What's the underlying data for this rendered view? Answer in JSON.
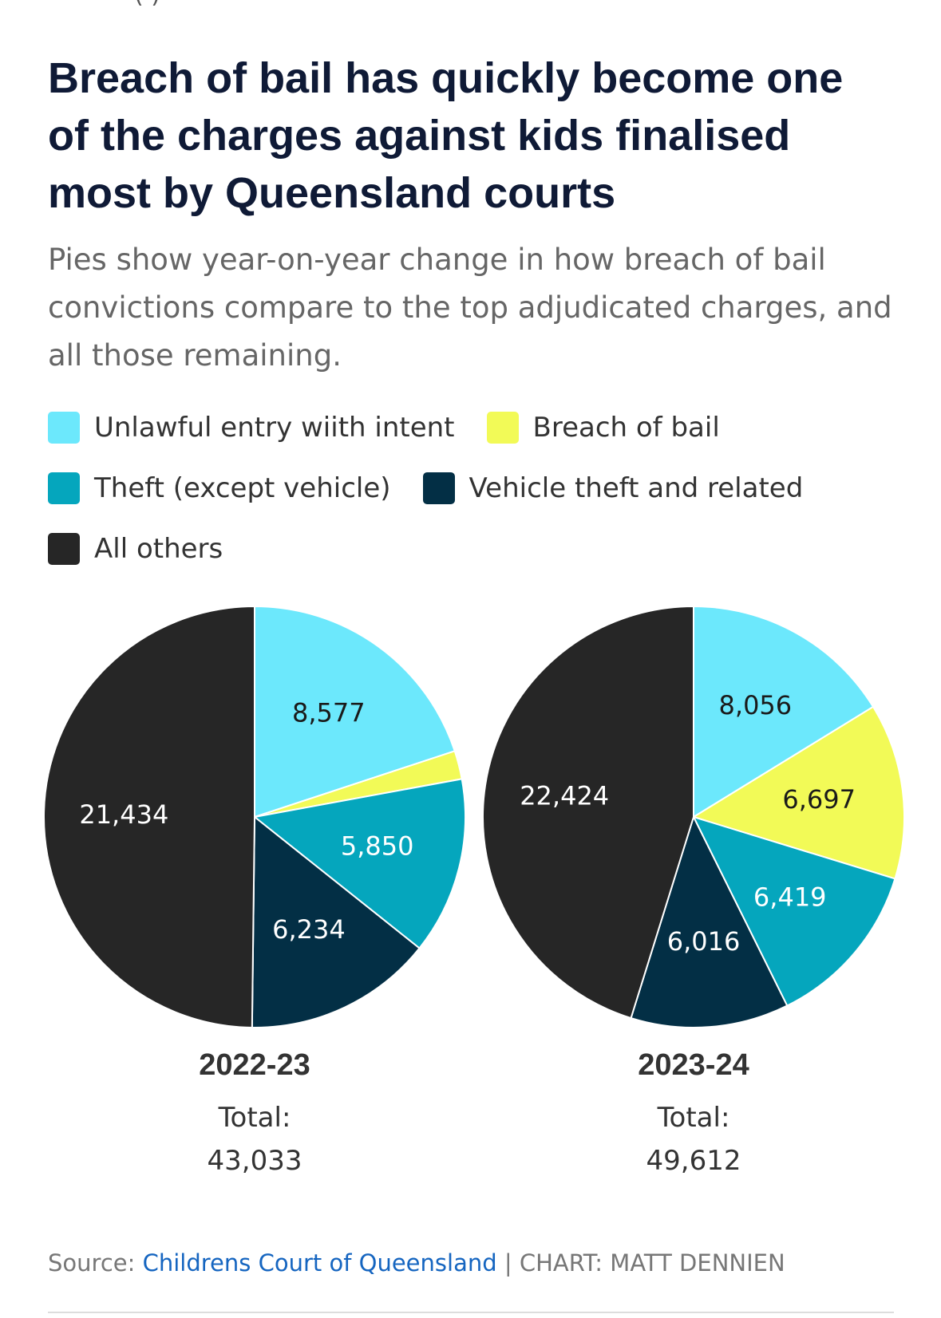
{
  "header": {
    "title": "Breach of bail has quickly become one of the charges against kids finalised most by Queensland courts",
    "subtitle": "Pies show year-on-year change in how breach of bail convictions compare to the top adjudicated charges, and all those remaining."
  },
  "legend": {
    "items": [
      {
        "label": "Unlawful entry wiith intent",
        "color": "#6ce8fc"
      },
      {
        "label": "Breach of bail",
        "color": "#f2fa57"
      },
      {
        "label": "Theft (except vehicle)",
        "color": "#05a6bd"
      },
      {
        "label": "Vehicle theft and related",
        "color": "#032f45"
      },
      {
        "label": "All others",
        "color": "#262626"
      }
    ]
  },
  "chart_data": [
    {
      "type": "pie",
      "title": "2022-23",
      "total_label": "Total:",
      "total": "43,033",
      "slices": [
        {
          "name": "Unlawful entry wiith intent",
          "value": 8577,
          "label": "8,577",
          "color": "#6ce8fc",
          "label_color": "#1a1a1a"
        },
        {
          "name": "Breach of bail",
          "value": 938,
          "label": "",
          "color": "#f2fa57",
          "label_color": "#1a1a1a"
        },
        {
          "name": "Theft (except vehicle)",
          "value": 5850,
          "label": "5,850",
          "color": "#05a6bd",
          "label_color": "#ffffff"
        },
        {
          "name": "Vehicle theft and related",
          "value": 6234,
          "label": "6,234",
          "color": "#032f45",
          "label_color": "#ffffff"
        },
        {
          "name": "All others",
          "value": 21434,
          "label": "21,434",
          "color": "#262626",
          "label_color": "#ffffff"
        }
      ]
    },
    {
      "type": "pie",
      "title": "2023-24",
      "total_label": "Total:",
      "total": "49,612",
      "slices": [
        {
          "name": "Unlawful entry wiith intent",
          "value": 8056,
          "label": "8,056",
          "color": "#6ce8fc",
          "label_color": "#1a1a1a"
        },
        {
          "name": "Breach of bail",
          "value": 6697,
          "label": "6,697",
          "color": "#f2fa57",
          "label_color": "#1a1a1a"
        },
        {
          "name": "Theft (except vehicle)",
          "value": 6419,
          "label": "6,419",
          "color": "#05a6bd",
          "label_color": "#ffffff"
        },
        {
          "name": "Vehicle theft and related",
          "value": 6016,
          "label": "6,016",
          "color": "#032f45",
          "label_color": "#ffffff"
        },
        {
          "name": "All others",
          "value": 22424,
          "label": "22,424",
          "color": "#262626",
          "label_color": "#ffffff"
        }
      ]
    }
  ],
  "footer": {
    "source_prefix": "Source: ",
    "source_link": "Childrens Court of Queensland",
    "credit": " | CHART: MATT DENNIEN"
  }
}
